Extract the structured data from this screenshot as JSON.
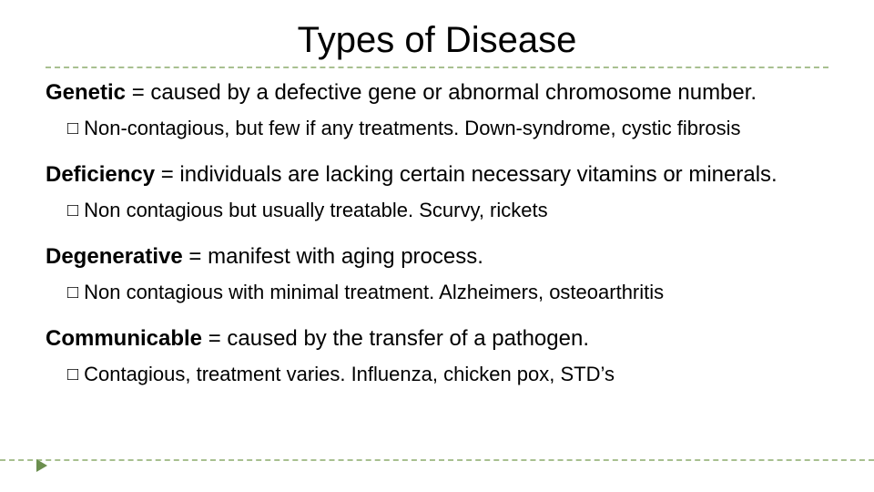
{
  "colors": {
    "background": "#ffffff",
    "text": "#000000",
    "divider": "#a8c090",
    "marker": "#6b8e4e"
  },
  "typography": {
    "title_fontsize": 40,
    "heading_fontsize": 24,
    "sub_fontsize": 22,
    "font_family": "Arial"
  },
  "title": "Types of Disease",
  "sections": [
    {
      "term": "Genetic",
      "definition": " = caused by a defective gene or abnormal chromosome number.",
      "sub": "Non-contagious, but few if any treatments. Down-syndrome, cystic fibrosis"
    },
    {
      "term": "Deficiency",
      "definition": " = individuals are lacking certain necessary vitamins or minerals.",
      "sub": "Non contagious but usually treatable. Scurvy, rickets"
    },
    {
      "term": "Degenerative",
      "definition": " = manifest with aging process.",
      "sub": "Non contagious with minimal treatment. Alzheimers, osteoarthritis"
    },
    {
      "term": "Communicable",
      "definition": " = caused by the transfer of a pathogen.",
      "sub": "Contagious, treatment varies. Influenza, chicken pox, STD’s"
    }
  ]
}
